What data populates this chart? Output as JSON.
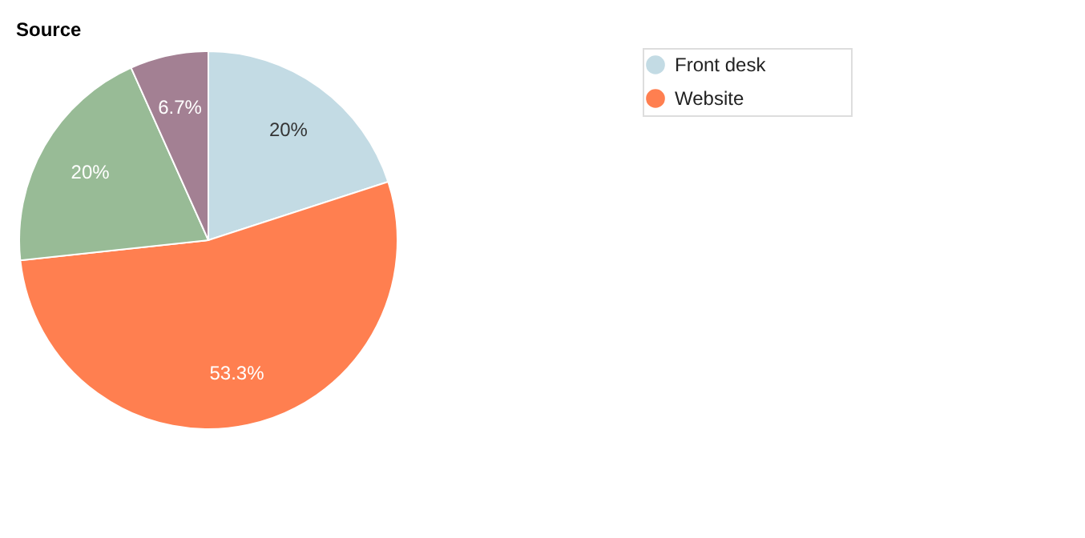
{
  "chart_data": {
    "type": "pie",
    "title": "Source",
    "categories": [
      "Front desk",
      "Website",
      null,
      null
    ],
    "values": [
      20,
      53.3,
      20,
      6.7
    ],
    "value_labels": [
      "20%",
      "53.3%",
      "20%",
      "6.7%"
    ],
    "colors": [
      "#c3dbe4",
      "#ff7f50",
      "#98bb96",
      "#a38093"
    ],
    "legend": "top right"
  }
}
